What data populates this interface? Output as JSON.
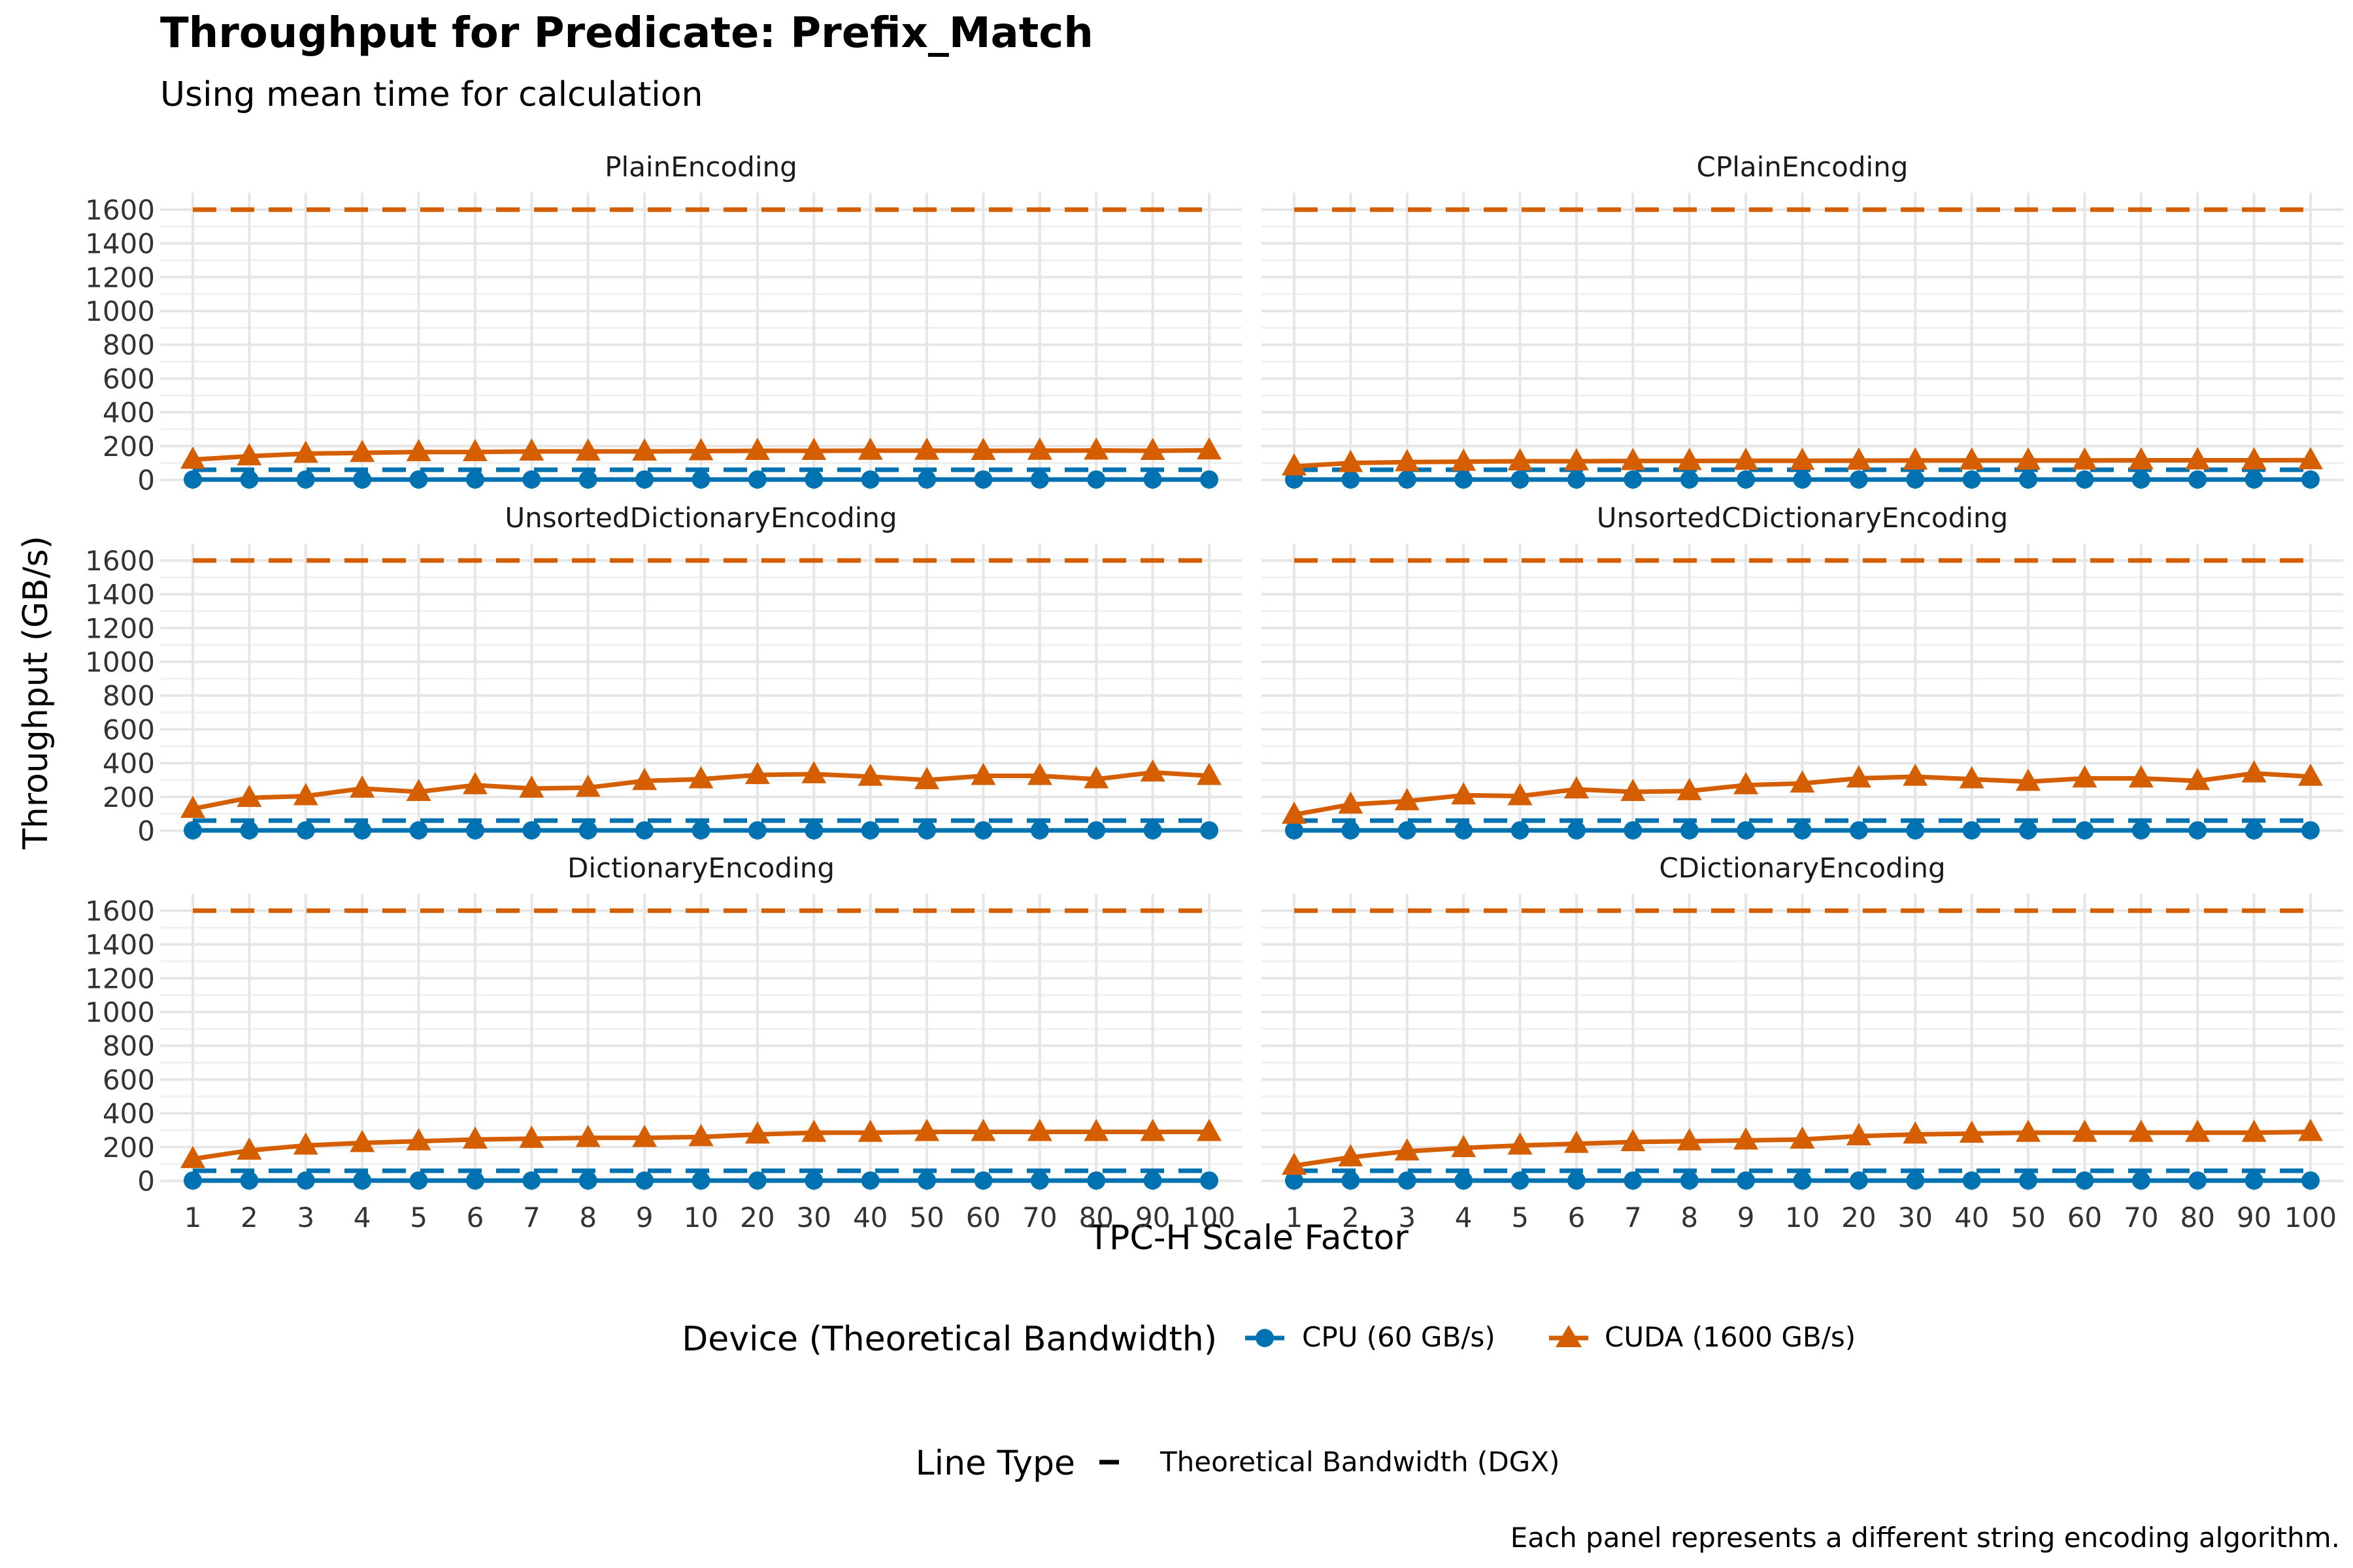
{
  "chart_data": {
    "type": "line",
    "title": "Throughput for Predicate: Prefix_Match",
    "subtitle": "Using mean time for calculation",
    "xlabel": "TPC-H Scale Factor",
    "ylabel": "Throughput (GB/s)",
    "categories": [
      "1",
      "2",
      "3",
      "4",
      "5",
      "6",
      "7",
      "8",
      "9",
      "10",
      "20",
      "30",
      "40",
      "50",
      "60",
      "70",
      "80",
      "90",
      "100"
    ],
    "ylim": [
      0,
      1600
    ],
    "y_ticks": [
      "0",
      "200",
      "400",
      "600",
      "800",
      "1000",
      "1200",
      "1400",
      "1600"
    ],
    "grid": true,
    "colors": {
      "cpu": "#0072B2",
      "cuda": "#D55E00"
    },
    "legend_device": {
      "title": "Device (Theoretical Bandwidth)",
      "entries": [
        "CPU (60 GB/s)",
        "CUDA (1600 GB/s)"
      ]
    },
    "legend_linetype": {
      "title": "Line Type",
      "entries": [
        "Theoretical Bandwidth (DGX)"
      ]
    },
    "reference_lines": {
      "cpu": 60,
      "cuda": 1600
    },
    "caption": "Each panel represents a different string encoding algorithm.",
    "panels": [
      {
        "title": "PlainEncoding",
        "series": [
          {
            "device": "cpu",
            "values": [
              2,
              2,
              2,
              2,
              2,
              2,
              2,
              2,
              2,
              2,
              2,
              2,
              2,
              2,
              2,
              2,
              2,
              2,
              2
            ]
          },
          {
            "device": "cuda",
            "values": [
              120,
              140,
              155,
              160,
              165,
              165,
              168,
              168,
              168,
              170,
              172,
              172,
              173,
              173,
              172,
              173,
              174,
              172,
              175
            ]
          }
        ]
      },
      {
        "title": "CPlainEncoding",
        "series": [
          {
            "device": "cpu",
            "values": [
              2,
              2,
              2,
              2,
              2,
              2,
              2,
              2,
              2,
              2,
              2,
              2,
              2,
              2,
              2,
              2,
              2,
              2,
              2
            ]
          },
          {
            "device": "cuda",
            "values": [
              80,
              100,
              105,
              108,
              110,
              110,
              112,
              112,
              113,
              113,
              114,
              115,
              115,
              115,
              115,
              116,
              116,
              116,
              117
            ]
          }
        ]
      },
      {
        "title": "UnsortedDictionaryEncoding",
        "series": [
          {
            "device": "cpu",
            "values": [
              2,
              2,
              2,
              2,
              2,
              2,
              2,
              2,
              2,
              2,
              2,
              2,
              2,
              2,
              2,
              2,
              2,
              2,
              2
            ]
          },
          {
            "device": "cuda",
            "values": [
              130,
              195,
              205,
              250,
              230,
              270,
              250,
              255,
              295,
              305,
              330,
              335,
              320,
              300,
              325,
              325,
              305,
              345,
              325
            ]
          }
        ]
      },
      {
        "title": "UnsortedCDictionaryEncoding",
        "series": [
          {
            "device": "cpu",
            "values": [
              2,
              2,
              2,
              2,
              2,
              2,
              2,
              2,
              2,
              2,
              2,
              2,
              2,
              2,
              2,
              2,
              2,
              2,
              2
            ]
          },
          {
            "device": "cuda",
            "values": [
              95,
              155,
              175,
              210,
              205,
              245,
              230,
              235,
              270,
              280,
              310,
              320,
              305,
              290,
              310,
              310,
              295,
              340,
              320
            ]
          }
        ]
      },
      {
        "title": "DictionaryEncoding",
        "series": [
          {
            "device": "cpu",
            "values": [
              2,
              2,
              2,
              2,
              2,
              2,
              2,
              2,
              2,
              2,
              2,
              2,
              2,
              2,
              2,
              2,
              2,
              2,
              2
            ]
          },
          {
            "device": "cuda",
            "values": [
              130,
              180,
              210,
              225,
              235,
              245,
              250,
              255,
              255,
              260,
              275,
              285,
              285,
              290,
              290,
              290,
              290,
              290,
              290
            ]
          }
        ]
      },
      {
        "title": "CDictionaryEncoding",
        "series": [
          {
            "device": "cpu",
            "values": [
              2,
              2,
              2,
              2,
              2,
              2,
              2,
              2,
              2,
              2,
              2,
              2,
              2,
              2,
              2,
              2,
              2,
              2,
              2
            ]
          },
          {
            "device": "cuda",
            "values": [
              90,
              140,
              175,
              195,
              210,
              220,
              230,
              235,
              240,
              245,
              265,
              275,
              280,
              285,
              285,
              285,
              285,
              285,
              290
            ]
          }
        ]
      }
    ]
  }
}
